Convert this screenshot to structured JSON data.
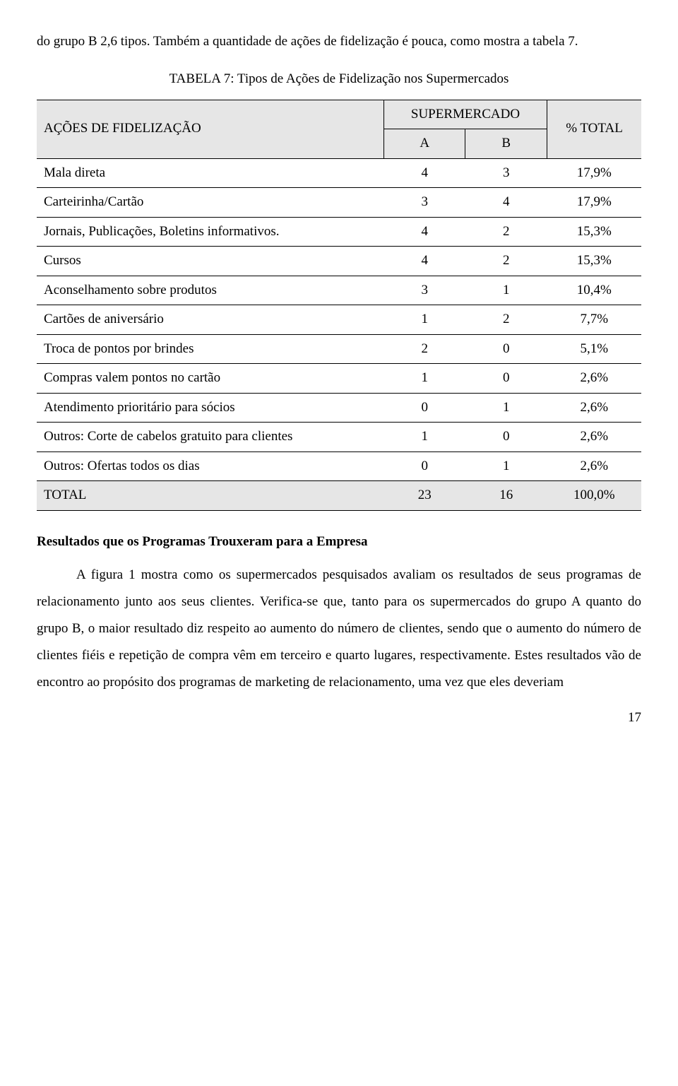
{
  "intro_para": "do grupo B 2,6 tipos. Também a quantidade de ações de fidelização é pouca, como mostra a tabela 7.",
  "table": {
    "title": "TABELA 7: Tipos de Ações de Fidelização nos Supermercados",
    "headers": {
      "actions": "AÇÕES DE FIDELIZAÇÃO",
      "supermarket": "SUPERMERCADO",
      "total": "% TOTAL",
      "A": "A",
      "B": "B"
    },
    "rows": [
      {
        "label": "Mala direta",
        "a": "4",
        "b": "3",
        "pct": "17,9%"
      },
      {
        "label": "Carteirinha/Cartão",
        "a": "3",
        "b": "4",
        "pct": "17,9%"
      },
      {
        "label": "Jornais, Publicações, Boletins informativos.",
        "a": "4",
        "b": "2",
        "pct": "15,3%"
      },
      {
        "label": "Cursos",
        "a": "4",
        "b": "2",
        "pct": "15,3%"
      },
      {
        "label": "Aconselhamento sobre produtos",
        "a": "3",
        "b": "1",
        "pct": "10,4%"
      },
      {
        "label": "Cartões de aniversário",
        "a": "1",
        "b": "2",
        "pct": "7,7%"
      },
      {
        "label": "Troca de pontos por brindes",
        "a": "2",
        "b": "0",
        "pct": "5,1%"
      },
      {
        "label": "Compras valem pontos no cartão",
        "a": "1",
        "b": "0",
        "pct": "2,6%"
      },
      {
        "label": "Atendimento prioritário para sócios",
        "a": "0",
        "b": "1",
        "pct": "2,6%"
      },
      {
        "label": "Outros: Corte de cabelos gratuito para clientes",
        "a": "1",
        "b": "0",
        "pct": "2,6%"
      },
      {
        "label": "Outros: Ofertas todos os dias",
        "a": "0",
        "b": "1",
        "pct": "2,6%"
      }
    ],
    "total_row": {
      "label": "TOTAL",
      "a": "23",
      "b": "16",
      "pct": "100,0%"
    }
  },
  "results": {
    "heading": "Resultados que os Programas Trouxeram para a Empresa",
    "body": "A figura 1 mostra como os supermercados pesquisados avaliam os resultados de seus programas de relacionamento junto aos seus clientes. Verifica-se que, tanto para os supermercados do grupo A quanto do grupo B, o maior resultado diz respeito ao aumento do número de clientes, sendo que o aumento do número de clientes fiéis e repetição de compra vêm em terceiro e quarto lugares, respectivamente. Estes resultados vão de encontro ao propósito dos programas de marketing de relacionamento, uma vez que eles deveriam"
  },
  "page_number": "17",
  "colors": {
    "shade": "#e6e6e6",
    "border": "#000000",
    "text": "#000000",
    "bg": "#ffffff"
  }
}
